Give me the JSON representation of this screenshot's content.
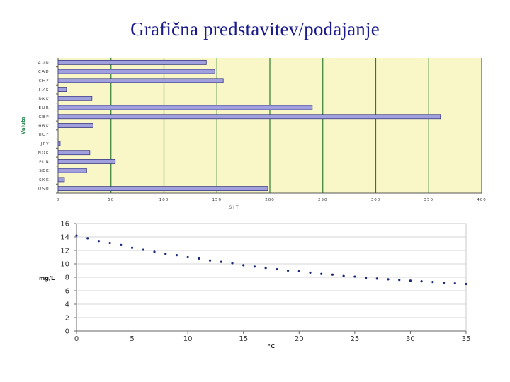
{
  "slide_title": "Grafična predstavitev/podajanje",
  "colors": {
    "title": "#1a1a8c",
    "bar_fill": "#a0a0de",
    "bar_stroke": "#3a3a80",
    "plot_bg_1": "#f9f7c8",
    "grid_1": "#2f7d2f",
    "axis_label_1": "#2e8b57",
    "plot_bg_2": "#ffffff",
    "grid_2": "#c8c8c8",
    "points_2": "#1a2a7a"
  },
  "chart_data": [
    {
      "type": "bar",
      "orientation": "horizontal",
      "categories": [
        "AUD",
        "CAD",
        "CHF",
        "CZK",
        "DKK",
        "EUR",
        "GBP",
        "HRK",
        "HUF",
        "JPY",
        "NOK",
        "PLN",
        "SEK",
        "SKK",
        "USD"
      ],
      "values": [
        140,
        148,
        156,
        8,
        32,
        240,
        361,
        33,
        0,
        2,
        30,
        54,
        27,
        6,
        198
      ],
      "xlabel": "SIT",
      "ylabel": "Valuta",
      "xlim": [
        0,
        400
      ],
      "xticks": [
        0,
        50,
        100,
        150,
        200,
        250,
        300,
        350,
        400
      ],
      "grid": "vertical"
    },
    {
      "type": "scatter",
      "x": [
        0,
        1,
        2,
        3,
        4,
        5,
        6,
        7,
        8,
        9,
        10,
        11,
        12,
        13,
        14,
        15,
        16,
        17,
        18,
        19,
        20,
        21,
        22,
        23,
        24,
        25,
        26,
        27,
        28,
        29,
        30,
        31,
        32,
        33,
        34,
        35
      ],
      "y": [
        14.2,
        13.8,
        13.4,
        13.1,
        12.8,
        12.4,
        12.1,
        11.8,
        11.5,
        11.3,
        11.0,
        10.8,
        10.5,
        10.3,
        10.1,
        9.8,
        9.6,
        9.4,
        9.2,
        9.0,
        8.9,
        8.7,
        8.5,
        8.4,
        8.2,
        8.1,
        7.9,
        7.8,
        7.7,
        7.6,
        7.5,
        7.4,
        7.3,
        7.2,
        7.1,
        7.0
      ],
      "xlabel": "°C",
      "ylabel": "mg/L",
      "xlim": [
        0,
        35
      ],
      "ylim": [
        0,
        16
      ],
      "xticks": [
        0,
        5,
        10,
        15,
        20,
        25,
        30,
        35
      ],
      "yticks": [
        0,
        2,
        4,
        6,
        8,
        10,
        12,
        14,
        16
      ],
      "grid": "horizontal"
    }
  ]
}
